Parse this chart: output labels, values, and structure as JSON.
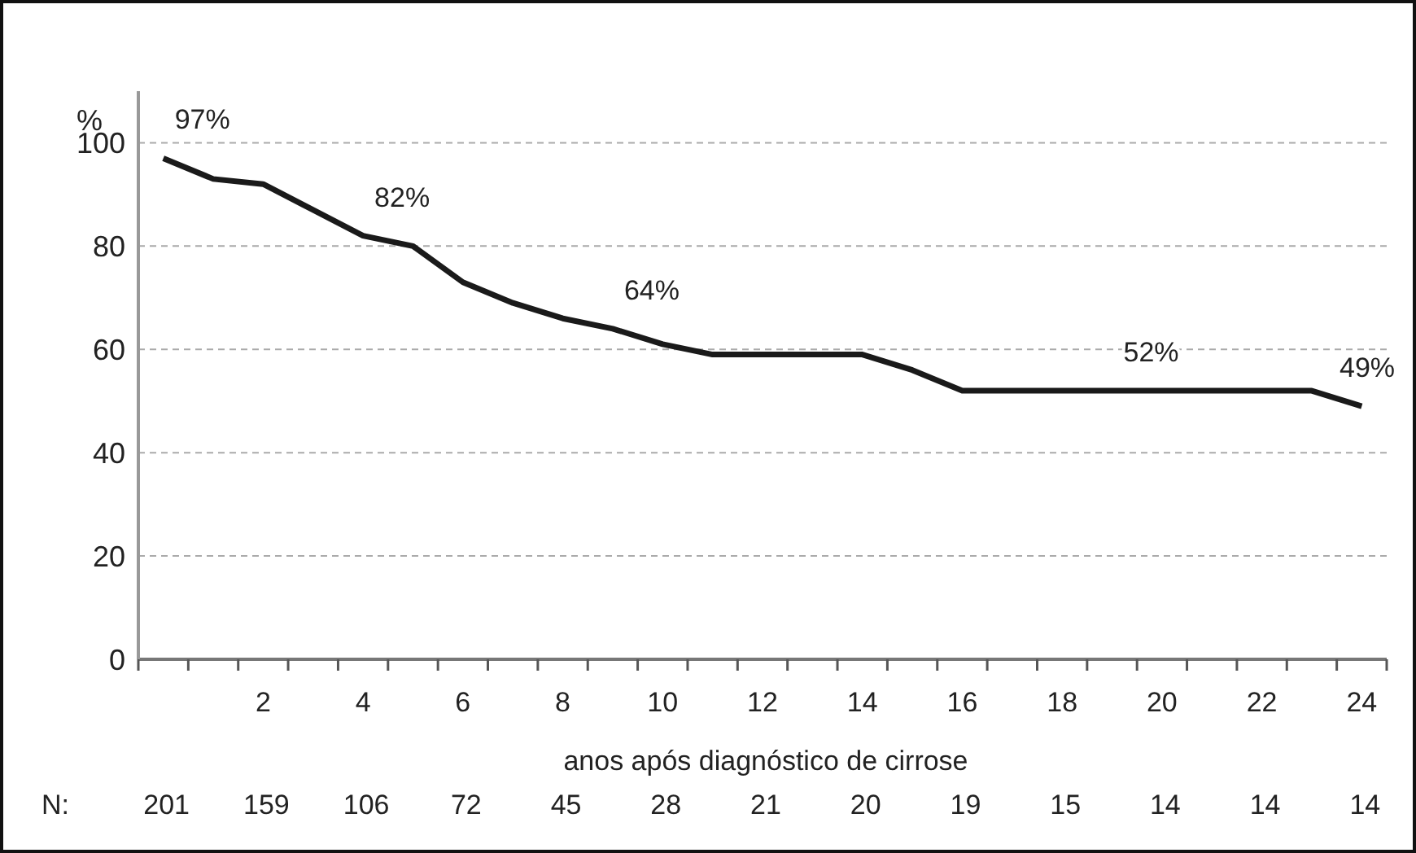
{
  "chart_data": {
    "type": "line",
    "xlabel": "anos após diagnóstico de cirrose",
    "ylabel": "%",
    "x": [
      0,
      1,
      2,
      3,
      4,
      5,
      6,
      7,
      8,
      9,
      10,
      11,
      12,
      13,
      14,
      15,
      16,
      17,
      18,
      19,
      20,
      21,
      22,
      23,
      24
    ],
    "series": [
      {
        "color": "#1a1a1a",
        "values": [
          97,
          93,
          92,
          87,
          82,
          80,
          73,
          69,
          66,
          64,
          61,
          59,
          59,
          59,
          59,
          56,
          52,
          52,
          52,
          52,
          52,
          52,
          52,
          52,
          49
        ]
      }
    ],
    "xlim": [
      -0.5,
      24.5
    ],
    "xticks": [
      {
        "value": -0.5,
        "label": null
      },
      {
        "value": 0.5,
        "label": null
      },
      {
        "value": 1.5,
        "label": null
      },
      {
        "value": 2.5,
        "label": null
      },
      {
        "value": 3.5,
        "label": null
      },
      {
        "value": 4.5,
        "label": null
      },
      {
        "value": 5.5,
        "label": null
      },
      {
        "value": 6.5,
        "label": null
      },
      {
        "value": 7.5,
        "label": null
      },
      {
        "value": 8.5,
        "label": null
      },
      {
        "value": 9.5,
        "label": null
      },
      {
        "value": 10.5,
        "label": null
      },
      {
        "value": 11.5,
        "label": null
      },
      {
        "value": 12.5,
        "label": null
      },
      {
        "value": 13.5,
        "label": null
      },
      {
        "value": 14.5,
        "label": null
      },
      {
        "value": 15.5,
        "label": null
      },
      {
        "value": 16.5,
        "label": null
      },
      {
        "value": 17.5,
        "label": null
      },
      {
        "value": 18.5,
        "label": null
      },
      {
        "value": 19.5,
        "label": null
      },
      {
        "value": 20.5,
        "label": null
      },
      {
        "value": 21.5,
        "label": null
      },
      {
        "value": 22.5,
        "label": null
      },
      {
        "value": 23.5,
        "label": null
      },
      {
        "value": 24.5,
        "label": null
      },
      2,
      4,
      6,
      8,
      10,
      12,
      14,
      16,
      18,
      20,
      22,
      24
    ],
    "ylim": [
      0,
      110
    ],
    "yticks": [
      0,
      20,
      40,
      60,
      80,
      100
    ],
    "grid": "y",
    "line_style": "solid",
    "marker": "none",
    "annotations": [
      {
        "text": "97%",
        "x": 0,
        "y": 97
      },
      {
        "text": "82%",
        "x": 4,
        "y": 82
      },
      {
        "text": "64%",
        "x": 9,
        "y": 64
      },
      {
        "text": "52%",
        "x": 19,
        "y": 52
      },
      {
        "text": "49%",
        "x": 24,
        "y": 49
      },
      "N:",
      "201",
      "159",
      "106",
      "72",
      "45",
      "28",
      "21",
      "20",
      "19",
      "15",
      "14",
      "14",
      "14"
    ]
  }
}
